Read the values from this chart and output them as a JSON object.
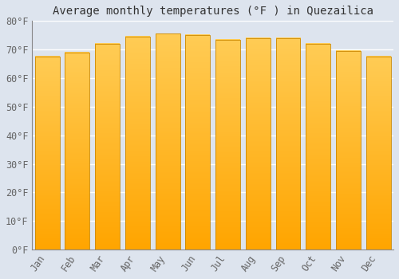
{
  "months": [
    "Jan",
    "Feb",
    "Mar",
    "Apr",
    "May",
    "Jun",
    "Jul",
    "Aug",
    "Sep",
    "Oct",
    "Nov",
    "Dec"
  ],
  "values": [
    67.5,
    69.0,
    72.0,
    74.5,
    75.5,
    75.0,
    73.5,
    74.0,
    74.0,
    72.0,
    69.5,
    67.5
  ],
  "bar_color_bottom": "#FFA500",
  "bar_color_top": "#FFCC55",
  "bar_edge_color": "#CC8800",
  "title": "Average monthly temperatures (°F ) in Quezailica",
  "ylim": [
    0,
    80
  ],
  "yticks": [
    0,
    10,
    20,
    30,
    40,
    50,
    60,
    70,
    80
  ],
  "ytick_labels": [
    "0°F",
    "10°F",
    "20°F",
    "30°F",
    "40°F",
    "50°F",
    "60°F",
    "70°F",
    "80°F"
  ],
  "background_color": "#dde4ee",
  "plot_bg_color": "#dde4ee",
  "grid_color": "#ffffff",
  "title_fontsize": 10,
  "tick_fontsize": 8.5,
  "font_family": "monospace",
  "tick_color": "#666666",
  "title_color": "#333333"
}
